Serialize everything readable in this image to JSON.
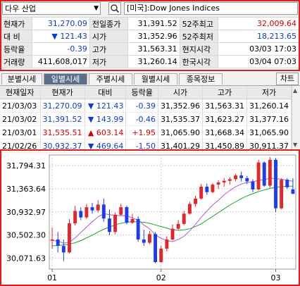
{
  "search": {
    "symbol": "다우 산업",
    "market": "[미국]:Dow Jones Indices"
  },
  "quote": {
    "rows": [
      [
        {
          "l": "현재가"
        },
        {
          "v": "31,270.09",
          "c": "blue"
        },
        {
          "l": "전일종가"
        },
        {
          "v": "31,391.52"
        },
        {
          "l": "52주최고"
        },
        {
          "v": "32,009.64",
          "c": "red"
        }
      ],
      [
        {
          "l": "대  비"
        },
        {
          "v": "▼ 121.43",
          "c": "blue"
        },
        {
          "l": "시가"
        },
        {
          "v": "31,352.96"
        },
        {
          "l": "52주최저"
        },
        {
          "v": "18,213.65",
          "c": "blue"
        }
      ],
      [
        {
          "l": "등락율"
        },
        {
          "v": "-0.39",
          "c": "blue"
        },
        {
          "l": "고가"
        },
        {
          "v": "31,563.31"
        },
        {
          "l": "현지시각"
        },
        {
          "v": "03/03 17:03"
        }
      ],
      [
        {
          "l": "거래량"
        },
        {
          "v": "411,608,017"
        },
        {
          "l": "저가"
        },
        {
          "v": "31,260.14"
        },
        {
          "l": "한국시각"
        },
        {
          "v": "03/04 07:03"
        }
      ]
    ]
  },
  "tabs": [
    "분별시세",
    "일별시세",
    "주별시세",
    "월별시세",
    "종목정보"
  ],
  "active_tab": 1,
  "chart_button": "차트",
  "daily": {
    "headers": [
      "현재일자",
      "현재가",
      "대비",
      "등락율",
      "시가",
      "고가",
      "저가"
    ],
    "rows": [
      {
        "date": "21/03/03",
        "close": "31,270.09",
        "chg": "▼ 121.43",
        "pct": "-0.39",
        "open": "31,352.96",
        "high": "31,563.31",
        "low": "31,260.14",
        "c": "blue"
      },
      {
        "date": "21/03/02",
        "close": "31,391.52",
        "chg": "▼ 143.99",
        "pct": "-0.46",
        "open": "31,535.37",
        "high": "31,623.27",
        "low": "31,377.16",
        "c": "blue"
      },
      {
        "date": "21/03/01",
        "close": "31,535.51",
        "chg": "▲ 603.14",
        "pct": "+1.95",
        "open": "31,065.90",
        "high": "31,668.34",
        "low": "31,065.90",
        "c": "red"
      },
      {
        "date": "21/02/26",
        "close": "30,932.37",
        "chg": "▼ 469.64",
        "pct": "-1.50",
        "open": "31,401.29",
        "high": "31,450.89",
        "low": "30,911.37",
        "c": "blue"
      }
    ]
  },
  "chart_data": {
    "type": "line",
    "title": "",
    "xlabel": "",
    "ylabel": "",
    "yticks": [
      "31,794.31",
      "31,363.64",
      "30,932.97",
      "30,502.30",
      "30,071.63"
    ],
    "ytick_values": [
      31794.31,
      31363.64,
      30932.97,
      30502.3,
      30071.63
    ],
    "ylim": [
      29870,
      31990
    ],
    "xticks": [
      "01",
      "02",
      "03"
    ],
    "xtick_index": [
      0,
      19,
      39
    ],
    "candles": [
      [
        30400,
        30640,
        30250,
        30420
      ],
      [
        30420,
        30560,
        30180,
        30300
      ],
      [
        30300,
        30420,
        30020,
        30180
      ],
      [
        30180,
        30800,
        30160,
        30720
      ],
      [
        30720,
        31050,
        30680,
        30950
      ],
      [
        30950,
        31020,
        30780,
        30830
      ],
      [
        30830,
        31080,
        30800,
        31020
      ],
      [
        31020,
        31100,
        30900,
        30960
      ],
      [
        30960,
        31150,
        30920,
        31070
      ],
      [
        31070,
        31180,
        30750,
        30810
      ],
      [
        30810,
        30980,
        30500,
        30560
      ],
      [
        30560,
        30920,
        30520,
        30880
      ],
      [
        30880,
        31080,
        30860,
        31020
      ],
      [
        31020,
        31050,
        30700,
        30730
      ],
      [
        30730,
        30900,
        30710,
        30800
      ],
      [
        30800,
        30850,
        30380,
        30420
      ],
      [
        30420,
        30600,
        30300,
        30360
      ],
      [
        30360,
        30580,
        30330,
        30520
      ],
      [
        30520,
        30560,
        29980,
        30000
      ],
      [
        30000,
        30300,
        29990,
        30250
      ],
      [
        30250,
        30480,
        30200,
        30420
      ],
      [
        30420,
        30700,
        30400,
        30620
      ],
      [
        30620,
        30780,
        30600,
        30710
      ],
      [
        30710,
        30950,
        30690,
        30900
      ],
      [
        30900,
        31120,
        30880,
        31080
      ],
      [
        31080,
        31230,
        31030,
        31180
      ],
      [
        31180,
        31450,
        31160,
        31400
      ],
      [
        31400,
        31460,
        31250,
        31300
      ],
      [
        31300,
        31470,
        31280,
        31440
      ],
      [
        31440,
        31520,
        31360,
        31480
      ],
      [
        31480,
        31560,
        31400,
        31510
      ],
      [
        31510,
        31580,
        31440,
        31540
      ],
      [
        31540,
        31640,
        31500,
        31610
      ],
      [
        31610,
        31680,
        31500,
        31560
      ],
      [
        31560,
        31600,
        31450,
        31500
      ],
      [
        31500,
        31540,
        31300,
        31350
      ],
      [
        31350,
        31900,
        31330,
        31850
      ],
      [
        31850,
        31870,
        31400,
        31420
      ],
      [
        31420,
        31950,
        31380,
        31900
      ],
      [
        31900,
        31930,
        30930,
        31000
      ],
      [
        31000,
        31560,
        30980,
        31530
      ],
      [
        31530,
        31560,
        31360,
        31390
      ],
      [
        31350,
        31560,
        31260,
        31270
      ]
    ],
    "ma_short": [
      30400,
      30390,
      30350,
      30370,
      30450,
      30550,
      30650,
      30750,
      30840,
      30900,
      30880,
      30870,
      30860,
      30860,
      30820,
      30780,
      30690,
      30620,
      30510,
      30440,
      30400,
      30380,
      30420,
      30480,
      30580,
      30700,
      30830,
      30950,
      31060,
      31150,
      31250,
      31330,
      31400,
      31450,
      31480,
      31490,
      31520,
      31530,
      31560,
      31550,
      31540,
      31520,
      31500
    ],
    "ma_long": [
      30300,
      30310,
      30320,
      30330,
      30360,
      30400,
      30450,
      30500,
      30560,
      30610,
      30650,
      30690,
      30720,
      30740,
      30750,
      30750,
      30740,
      30720,
      30690,
      30660,
      30630,
      30600,
      30590,
      30600,
      30620,
      30660,
      30710,
      30780,
      30850,
      30920,
      30990,
      31060,
      31120,
      31180,
      31230,
      31270,
      31310,
      31340,
      31370,
      31390,
      31400,
      31410,
      31410
    ],
    "colors": {
      "up": "#e2262b",
      "down": "#1c3cf0",
      "ma_short": "#b45ad2",
      "ma_long": "#17a52a",
      "grid": "#cccccc"
    }
  }
}
